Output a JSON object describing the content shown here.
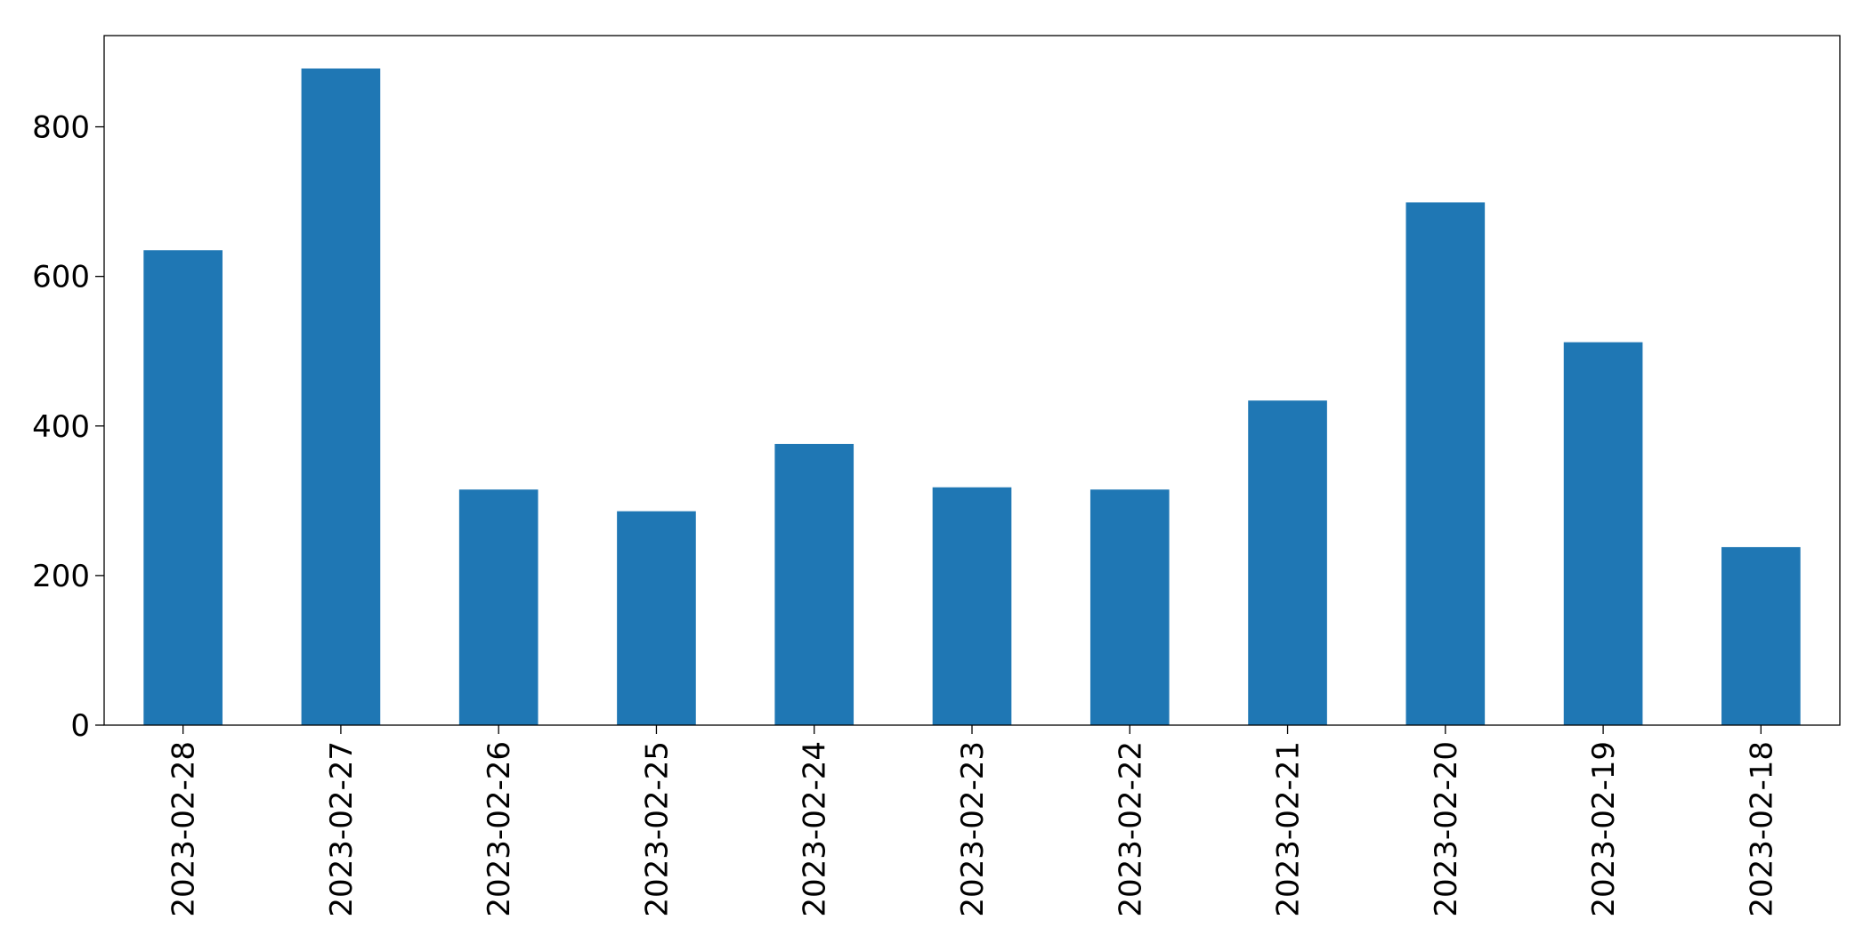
{
  "chart_data": {
    "type": "bar",
    "categories": [
      "2023-02-28",
      "2023-02-27",
      "2023-02-26",
      "2023-02-25",
      "2023-02-24",
      "2023-02-23",
      "2023-02-22",
      "2023-02-21",
      "2023-02-20",
      "2023-02-19",
      "2023-02-18"
    ],
    "values": [
      635,
      878,
      315,
      286,
      376,
      318,
      315,
      434,
      699,
      512,
      238
    ],
    "color": "#1f77b4",
    "ylim": [
      0,
      922
    ],
    "yticks": [
      0,
      200,
      400,
      600,
      800
    ],
    "grid": false
  }
}
